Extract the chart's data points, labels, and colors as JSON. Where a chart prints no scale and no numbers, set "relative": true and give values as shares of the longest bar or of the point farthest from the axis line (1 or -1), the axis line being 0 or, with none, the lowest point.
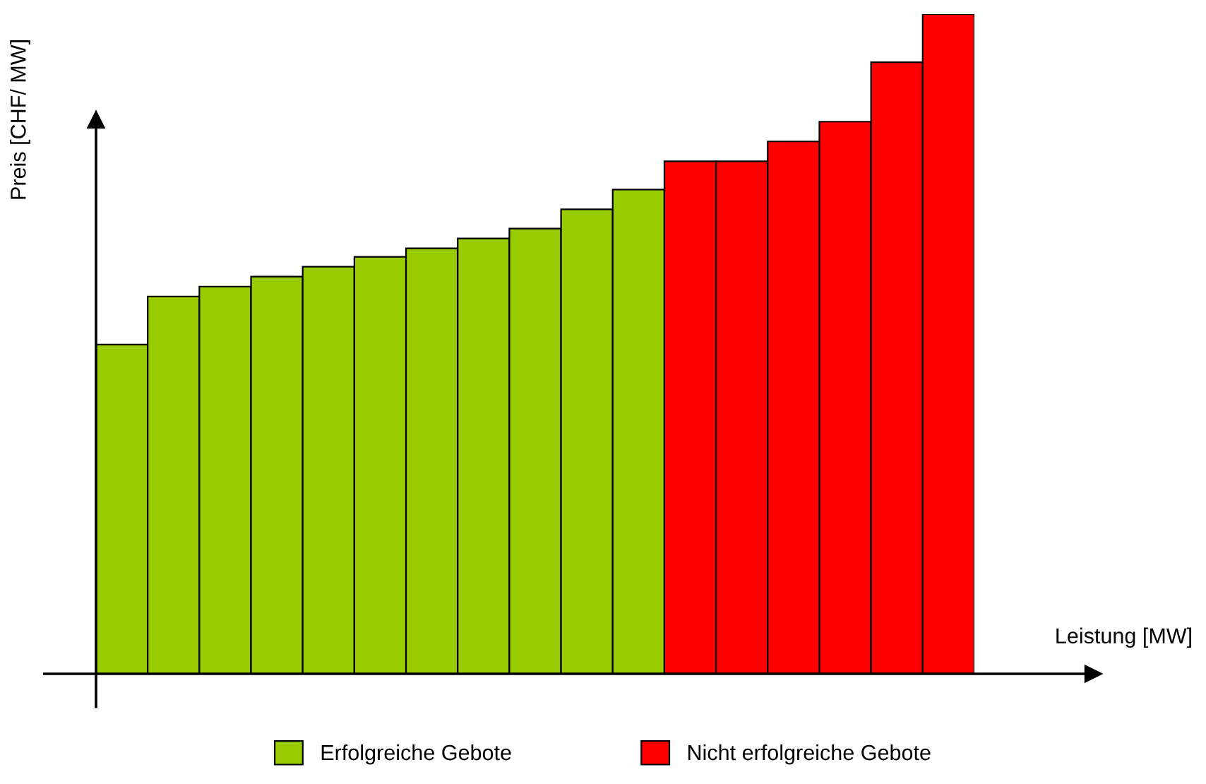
{
  "chart_data": {
    "type": "bar",
    "relative": true,
    "xlabel": "Leistung [MW]",
    "ylabel": "Preis [CHF/ MW]",
    "legend": "bottom",
    "grid": false,
    "stacked": true,
    "categories": [
      null,
      null,
      null,
      null,
      null,
      null,
      null,
      null,
      null,
      null,
      null,
      null,
      null,
      null,
      null,
      null,
      null
    ],
    "series": [
      {
        "name": "Erfolgreiche Gebote",
        "color": "#99cc00",
        "values": [
          0.499,
          0.572,
          0.587,
          0.602,
          0.617,
          0.632,
          0.645,
          0.66,
          0.675,
          0.704,
          0.734,
          null,
          null,
          null,
          null,
          null,
          null
        ]
      },
      {
        "name": "Nicht erfolgreiche Gebote",
        "color": "#ff0000",
        "values": [
          null,
          null,
          null,
          null,
          null,
          null,
          null,
          null,
          null,
          null,
          null,
          0.777,
          0.777,
          0.807,
          0.837,
          0.927,
          1
        ]
      }
    ]
  }
}
